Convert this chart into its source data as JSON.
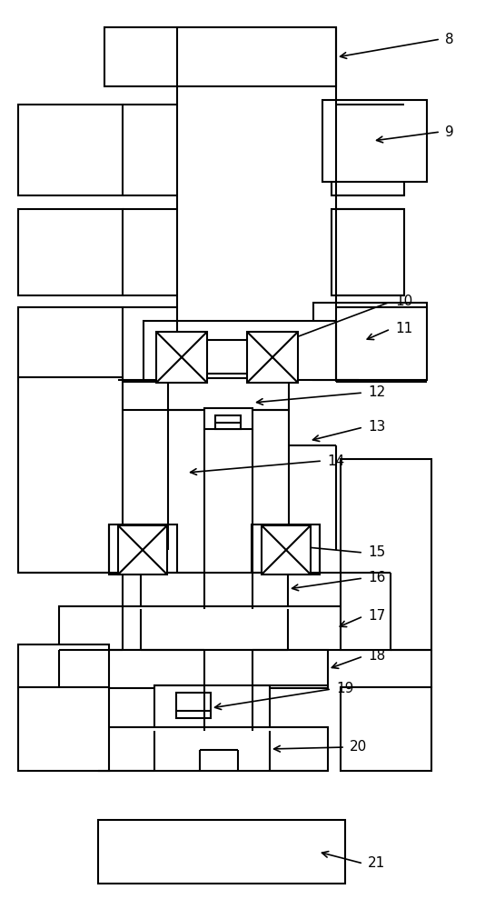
{
  "bg": "#ffffff",
  "lc": "#000000",
  "lw": 1.5,
  "fw": 5.45,
  "fh": 10.0
}
